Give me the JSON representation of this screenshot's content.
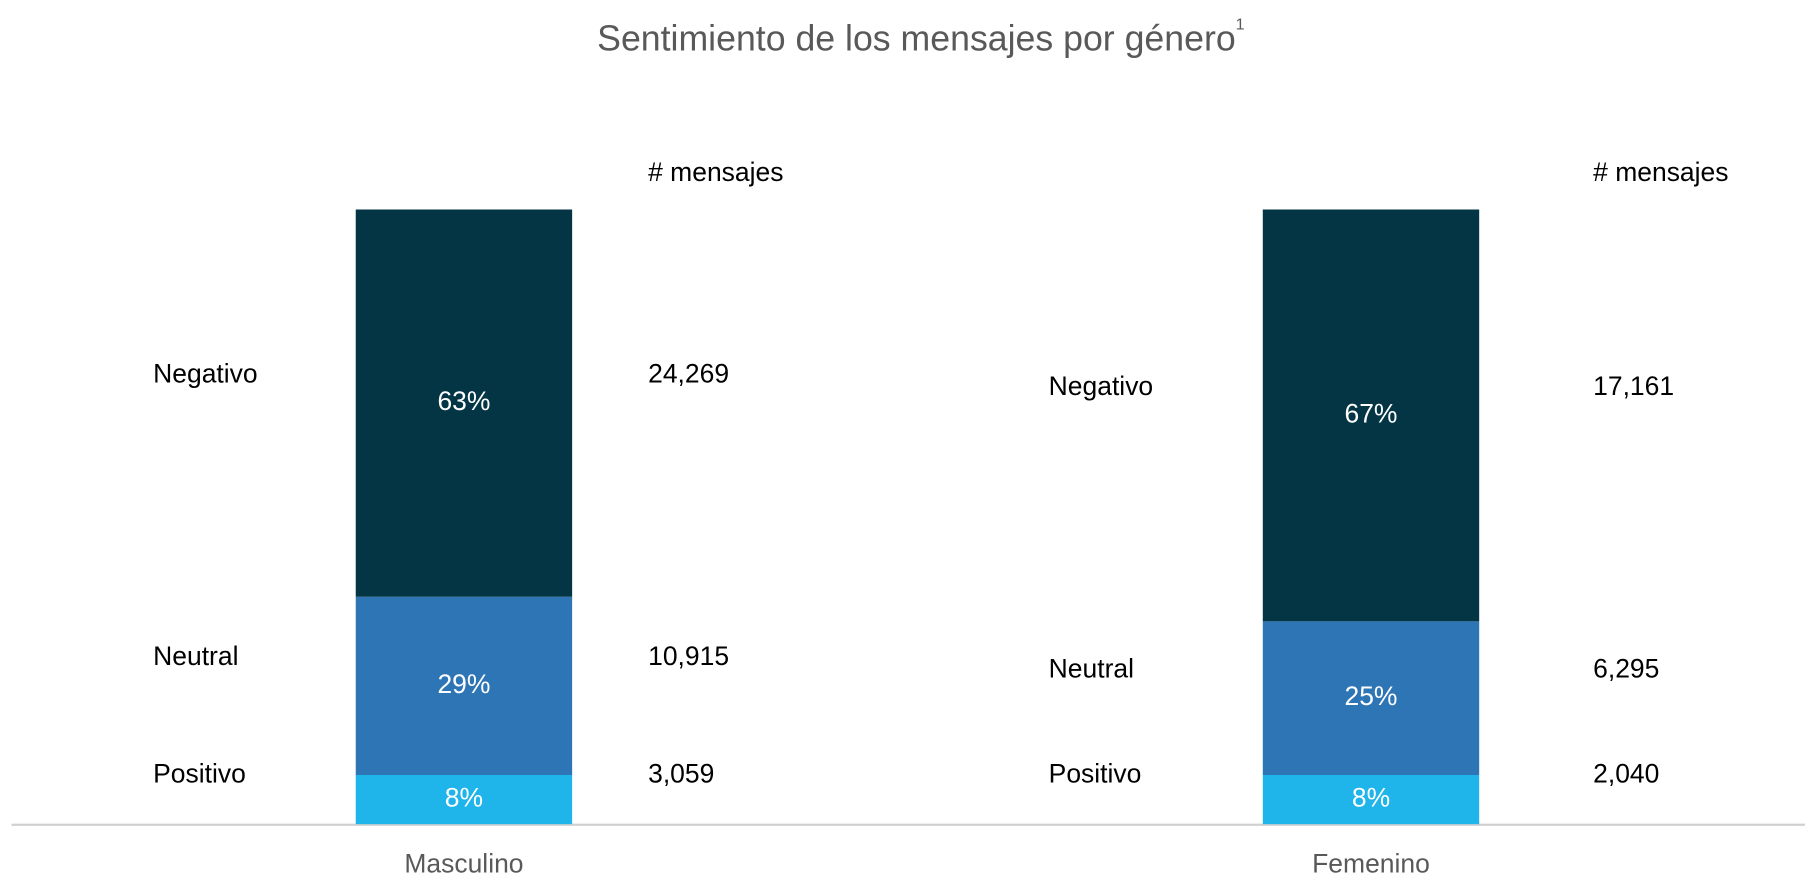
{
  "chart_data": {
    "type": "stacked_bar",
    "title": "Sentimiento de los mensajes por género",
    "title_note": "1",
    "count_header": "# mensajes",
    "categories": [
      "Masculino",
      "Femenino"
    ],
    "ylim": [
      0,
      100
    ],
    "series": [
      {
        "name": "Positivo",
        "color": "#1fb4ea",
        "values": [
          8,
          8
        ],
        "value_labels": [
          "8%",
          "8%"
        ],
        "counts": [
          "3,059",
          "2,040"
        ]
      },
      {
        "name": "Neutral",
        "color": "#2e75b6",
        "values": [
          29,
          25
        ],
        "value_labels": [
          "29%",
          "25%"
        ],
        "counts": [
          "10,915",
          "6,295"
        ]
      },
      {
        "name": "Negativo",
        "color": "#033545",
        "values": [
          63,
          67
        ],
        "value_labels": [
          "63%",
          "67%"
        ],
        "counts": [
          "24,269",
          "17,161"
        ]
      }
    ]
  }
}
